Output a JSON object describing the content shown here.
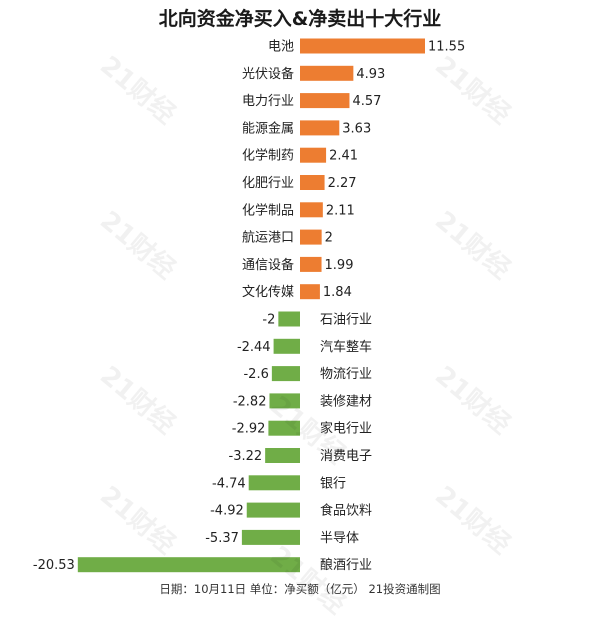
{
  "chart_data": {
    "type": "bar",
    "orientation": "horizontal",
    "title": "北向资金净买入&净卖出十大行业",
    "categories": [
      "电池",
      "光伏设备",
      "电力行业",
      "能源金属",
      "化学制药",
      "化肥行业",
      "化学制品",
      "航运港口",
      "通信设备",
      "文化传媒",
      "石油行业",
      "汽车整车",
      "物流行业",
      "装修建材",
      "家电行业",
      "消费电子",
      "银行",
      "食品饮料",
      "半导体",
      "酿酒行业"
    ],
    "values": [
      11.55,
      4.93,
      4.57,
      3.63,
      2.41,
      2.27,
      2.11,
      2,
      1.99,
      1.84,
      -2,
      -2.44,
      -2.6,
      -2.82,
      -2.92,
      -3.22,
      -4.74,
      -4.92,
      -5.37,
      -20.53
    ],
    "value_labels": [
      "11.55",
      "4.93",
      "4.57",
      "3.63",
      "2.41",
      "2.27",
      "2.11",
      "2",
      "1.99",
      "1.84",
      "-2",
      "-2.44",
      "-2.6",
      "-2.82",
      "-2.92",
      "-3.22",
      "-4.74",
      "-4.92",
      "-5.37",
      "-20.53"
    ],
    "colors": {
      "positive": "#ED7D31",
      "negative": "#70AD47"
    },
    "xlim": [
      -20.53,
      11.55
    ],
    "grid": false,
    "legend": "none",
    "footer": "日期：10月11日 单位：净买额（亿元） 21投资通制图"
  },
  "watermark": "21财经"
}
